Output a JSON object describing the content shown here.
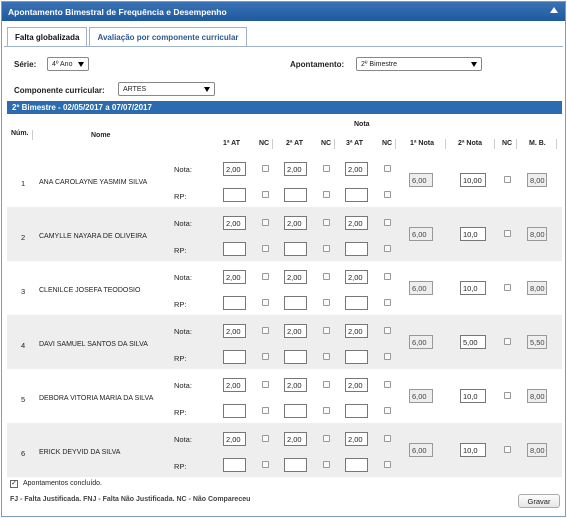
{
  "title": "Apontamento Bimestral de Frequência e Desempenho",
  "tabs": [
    "Falta globalizada",
    "Avaliação por componente curricular"
  ],
  "filters": {
    "serie_label": "Série:",
    "serie_value": "4º Ano",
    "apontamento_label": "Apontamento:",
    "apontamento_value": "2º Bimestre",
    "componente_label": "Componente curricular:",
    "componente_value": "ARTES"
  },
  "period_bar": "2º Bimestre - 02/05/2017 a 07/07/2017",
  "headers": {
    "num": "Núm.",
    "name": "Nome",
    "nota_group": "Nota",
    "at1": "1ª AT",
    "nc": "NC",
    "at2": "2ª AT",
    "at3": "3ª AT",
    "nota1": "1ª Nota",
    "nota2": "2ª Nota",
    "mb": "M. B."
  },
  "row_labels": {
    "nota": "Nota:",
    "rp": "RP:"
  },
  "students": [
    {
      "num": "1",
      "name": "ANA CAROLAYNE YASMIM SILVA",
      "at1": "2,00",
      "at2": "2,00",
      "at3": "2,00",
      "nota1": "6,00",
      "nota2": "10,00",
      "mb": "8,00"
    },
    {
      "num": "2",
      "name": "CAMYLLE NAYARA DE OLIVEIRA",
      "at1": "2,00",
      "at2": "2,00",
      "at3": "2,00",
      "nota1": "6,00",
      "nota2": "10,0",
      "mb": "8,00"
    },
    {
      "num": "3",
      "name": "CLENILCE JOSEFA TEODOSIO",
      "at1": "2,00",
      "at2": "2,00",
      "at3": "2,00",
      "nota1": "6,00",
      "nota2": "10,0",
      "mb": "8,00"
    },
    {
      "num": "4",
      "name": "DAVI SAMUEL SANTOS DA SILVA",
      "at1": "2,00",
      "at2": "2,00",
      "at3": "2,00",
      "nota1": "6,00",
      "nota2": "5,00",
      "mb": "5,50"
    },
    {
      "num": "5",
      "name": "DEBORA VITORIA MARIA DA SILVA",
      "at1": "2,00",
      "at2": "2,00",
      "at3": "2,00",
      "nota1": "6,00",
      "nota2": "10,0",
      "mb": "8,00"
    },
    {
      "num": "6",
      "name": "ERICK DEYVID DA SILVA",
      "at1": "2,00",
      "at2": "2,00",
      "at3": "2,00",
      "nota1": "6,00",
      "nota2": "10,0",
      "mb": "8,00"
    }
  ],
  "footer": {
    "concluded_label": "Apontamentos concluído.",
    "legend": "FJ - Falta Justificada. FNJ - Falta Não Justificada. NC - Não Compareceu",
    "save_button": "Gravar"
  }
}
